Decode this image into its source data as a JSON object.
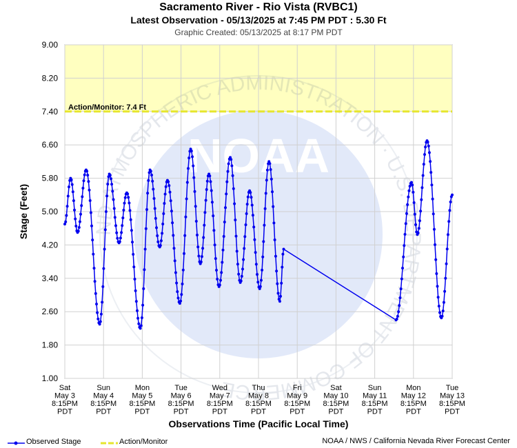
{
  "header": {
    "title": "Sacramento River - Rio Vista (RVBC1)",
    "subtitle": "Latest Observation - 05/13/2025 at 7:45 PM PDT : 5.30 Ft",
    "created": "Graphic Created: 05/13/2025 at 8:17 PM PDT"
  },
  "legend": {
    "observed_label": "Observed Stage",
    "action_label": "Action/Monitor",
    "observed_color": "#0000ee",
    "action_color": "#e6e62e"
  },
  "footer": {
    "credit": "NOAA / NWS / California Nevada River Forecast Center"
  },
  "watermark": {
    "logo_text": "NOAA",
    "ring_text": "NATIONAL OCEANIC AND ATMOSPHERIC ADMINISTRATION · U.S. DEPARTMENT OF COMMERCE"
  },
  "chart_data": {
    "type": "line",
    "ylabel": "Stage (Feet)",
    "xlabel": "Observations Time (Pacific Local Time)",
    "ylim": [
      1.0,
      9.0
    ],
    "yticks": [
      "9.00",
      "8.20",
      "7.40",
      "6.60",
      "5.80",
      "5.00",
      "4.20",
      "3.40",
      "2.60",
      "1.80",
      "1.00"
    ],
    "xlim_days": [
      0,
      10
    ],
    "xticks": [
      {
        "day": "Sat",
        "date": "May 3",
        "time": "8:15PM",
        "tz": "PDT"
      },
      {
        "day": "Sun",
        "date": "May 4",
        "time": "8:15PM",
        "tz": "PDT"
      },
      {
        "day": "Mon",
        "date": "May 5",
        "time": "8:15PM",
        "tz": "PDT"
      },
      {
        "day": "Tue",
        "date": "May 6",
        "time": "8:15PM",
        "tz": "PDT"
      },
      {
        "day": "Wed",
        "date": "May 7",
        "time": "8:15PM",
        "tz": "PDT"
      },
      {
        "day": "Thu",
        "date": "May 8",
        "time": "8:15PM",
        "tz": "PDT"
      },
      {
        "day": "Fri",
        "date": "May 9",
        "time": "8:15PM",
        "tz": "PDT"
      },
      {
        "day": "Sat",
        "date": "May 10",
        "time": "8:15PM",
        "tz": "PDT"
      },
      {
        "day": "Sun",
        "date": "May 11",
        "time": "8:15PM",
        "tz": "PDT"
      },
      {
        "day": "Mon",
        "date": "May 12",
        "time": "8:15PM",
        "tz": "PDT"
      },
      {
        "day": "Tue",
        "date": "May 13",
        "time": "8:15PM",
        "tz": "PDT"
      }
    ],
    "action_stage": 7.4,
    "action_label": "Action/Monitor: 7.4 Ft",
    "grid": true,
    "series": [
      {
        "name": "Observed Stage",
        "color": "#0000ee",
        "extrema_day_stage": [
          [
            0.0,
            4.7
          ],
          [
            0.15,
            5.8
          ],
          [
            0.33,
            4.5
          ],
          [
            0.55,
            6.0
          ],
          [
            0.9,
            2.3
          ],
          [
            1.15,
            5.9
          ],
          [
            1.4,
            4.25
          ],
          [
            1.6,
            5.45
          ],
          [
            1.95,
            2.2
          ],
          [
            2.2,
            6.0
          ],
          [
            2.45,
            4.15
          ],
          [
            2.65,
            5.75
          ],
          [
            2.97,
            2.8
          ],
          [
            3.25,
            6.5
          ],
          [
            3.5,
            3.75
          ],
          [
            3.72,
            5.9
          ],
          [
            3.98,
            3.2
          ],
          [
            4.27,
            6.3
          ],
          [
            4.53,
            3.3
          ],
          [
            4.77,
            5.5
          ],
          [
            5.03,
            3.15
          ],
          [
            5.27,
            6.2
          ],
          [
            5.55,
            2.85
          ],
          [
            5.65,
            4.1
          ],
          [
            8.55,
            2.4
          ],
          [
            8.95,
            5.7
          ],
          [
            9.1,
            4.45
          ],
          [
            9.35,
            6.7
          ],
          [
            9.72,
            2.45
          ],
          [
            10.0,
            5.4
          ]
        ]
      }
    ]
  }
}
